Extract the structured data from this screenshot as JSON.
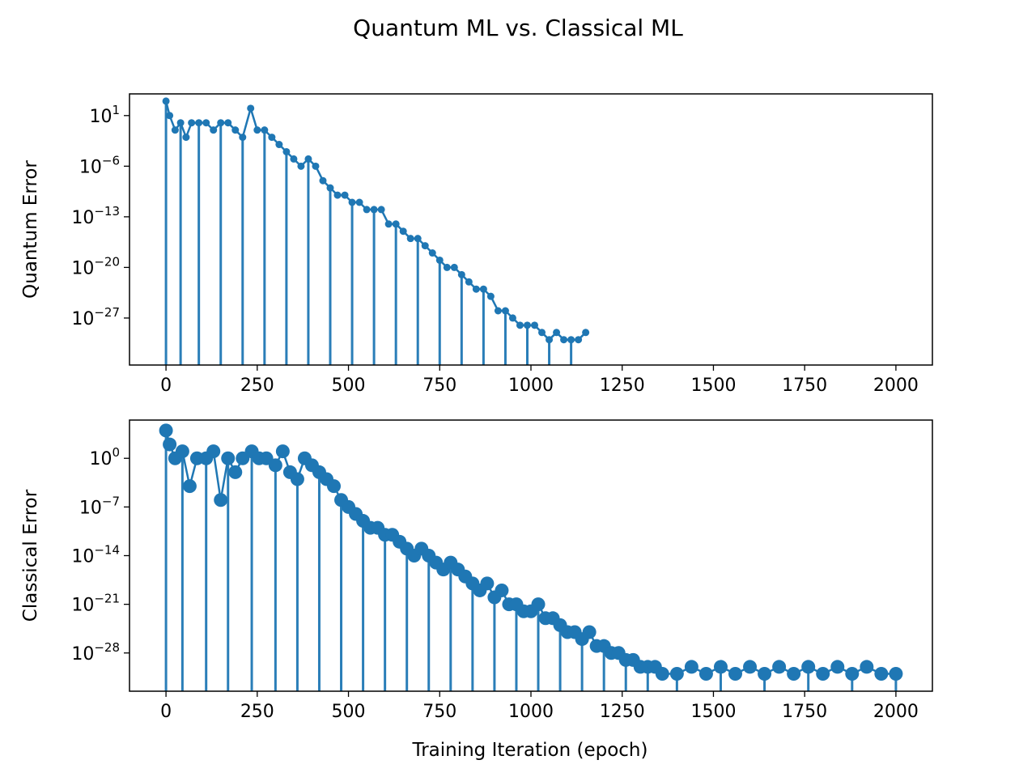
{
  "chart_data": {
    "type": "scatter",
    "suptitle": "Quantum ML vs. Classical ML",
    "xlabel": "Training Iteration (epoch)",
    "color": "#1f77b4",
    "panels": [
      {
        "name": "quantum",
        "ylabel": "Quantum Error",
        "yscale": "log",
        "xlim": [
          -100,
          2100
        ],
        "ylim_log10": [
          -33.5,
          4
        ],
        "xticks": [
          0,
          250,
          500,
          750,
          1000,
          1250,
          1500,
          1750,
          2000
        ],
        "xtick_labels": [
          "0",
          "250",
          "500",
          "750",
          "1000",
          "1250",
          "1500",
          "1750",
          "2000"
        ],
        "yticks_log10": [
          1,
          -6,
          -13,
          -20,
          -27
        ],
        "ytick_base": "10",
        "ytick_exponents": [
          "1",
          "−6",
          "−13",
          "−20",
          "−27"
        ],
        "marker": "small-dot",
        "series": [
          {
            "name": "Quantum Error",
            "points_log10": [
              [
                0,
                3
              ],
              [
                10,
                1
              ],
              [
                25,
                -1
              ],
              [
                40,
                0
              ],
              [
                55,
                -2
              ],
              [
                70,
                0
              ],
              [
                90,
                0
              ],
              [
                110,
                0
              ],
              [
                130,
                -1
              ],
              [
                150,
                0
              ],
              [
                170,
                0
              ],
              [
                190,
                -1
              ],
              [
                210,
                -2
              ],
              [
                232,
                2
              ],
              [
                250,
                -1
              ],
              [
                270,
                -1
              ],
              [
                290,
                -2
              ],
              [
                310,
                -3
              ],
              [
                330,
                -4
              ],
              [
                350,
                -5
              ],
              [
                370,
                -6
              ],
              [
                390,
                -5
              ],
              [
                410,
                -6
              ],
              [
                430,
                -8
              ],
              [
                450,
                -9
              ],
              [
                470,
                -10
              ],
              [
                490,
                -10
              ],
              [
                510,
                -11
              ],
              [
                530,
                -11
              ],
              [
                550,
                -12
              ],
              [
                570,
                -12
              ],
              [
                590,
                -12
              ],
              [
                610,
                -14
              ],
              [
                630,
                -14
              ],
              [
                650,
                -15
              ],
              [
                670,
                -16
              ],
              [
                690,
                -16
              ],
              [
                710,
                -17
              ],
              [
                730,
                -18
              ],
              [
                750,
                -19
              ],
              [
                770,
                -20
              ],
              [
                790,
                -20
              ],
              [
                810,
                -21
              ],
              [
                830,
                -22
              ],
              [
                850,
                -23
              ],
              [
                870,
                -23
              ],
              [
                890,
                -24
              ],
              [
                910,
                -26
              ],
              [
                930,
                -26
              ],
              [
                950,
                -27
              ],
              [
                970,
                -28
              ],
              [
                990,
                -28
              ],
              [
                1010,
                -28
              ],
              [
                1030,
                -29
              ],
              [
                1050,
                -30
              ],
              [
                1070,
                -29
              ],
              [
                1090,
                -30
              ],
              [
                1110,
                -30
              ],
              [
                1130,
                -30
              ],
              [
                1150,
                -29
              ]
            ]
          }
        ]
      },
      {
        "name": "classical",
        "ylabel": "Classical Error",
        "yscale": "log",
        "xlim": [
          -100,
          2100
        ],
        "ylim_log10": [
          -33.5,
          5.5
        ],
        "xticks": [
          0,
          250,
          500,
          750,
          1000,
          1250,
          1500,
          1750,
          2000
        ],
        "xtick_labels": [
          "0",
          "250",
          "500",
          "750",
          "1000",
          "1250",
          "1500",
          "1750",
          "2000"
        ],
        "yticks_log10": [
          0,
          -7,
          -14,
          -21,
          -28
        ],
        "ytick_base": "10",
        "ytick_exponents": [
          "0",
          "−7",
          "−14",
          "−21",
          "−28"
        ],
        "marker": "large-dot",
        "series": [
          {
            "name": "Classical Error",
            "points_log10": [
              [
                0,
                4
              ],
              [
                10,
                2
              ],
              [
                25,
                0
              ],
              [
                45,
                1
              ],
              [
                65,
                -4
              ],
              [
                85,
                0
              ],
              [
                110,
                0
              ],
              [
                130,
                1
              ],
              [
                150,
                -6
              ],
              [
                170,
                0
              ],
              [
                190,
                -2
              ],
              [
                210,
                0
              ],
              [
                235,
                1
              ],
              [
                255,
                0
              ],
              [
                275,
                0
              ],
              [
                300,
                -1
              ],
              [
                320,
                1
              ],
              [
                340,
                -2
              ],
              [
                360,
                -3
              ],
              [
                380,
                0
              ],
              [
                400,
                -1
              ],
              [
                420,
                -2
              ],
              [
                440,
                -3
              ],
              [
                460,
                -4
              ],
              [
                480,
                -6
              ],
              [
                500,
                -7
              ],
              [
                520,
                -8
              ],
              [
                540,
                -9
              ],
              [
                560,
                -10
              ],
              [
                580,
                -10
              ],
              [
                600,
                -11
              ],
              [
                620,
                -11
              ],
              [
                640,
                -12
              ],
              [
                660,
                -13
              ],
              [
                680,
                -14
              ],
              [
                700,
                -13
              ],
              [
                720,
                -14
              ],
              [
                740,
                -15
              ],
              [
                760,
                -16
              ],
              [
                780,
                -15
              ],
              [
                800,
                -16
              ],
              [
                820,
                -17
              ],
              [
                840,
                -18
              ],
              [
                860,
                -19
              ],
              [
                880,
                -18
              ],
              [
                900,
                -20
              ],
              [
                920,
                -19
              ],
              [
                940,
                -21
              ],
              [
                960,
                -21
              ],
              [
                980,
                -22
              ],
              [
                1000,
                -22
              ],
              [
                1020,
                -21
              ],
              [
                1040,
                -23
              ],
              [
                1060,
                -23
              ],
              [
                1080,
                -24
              ],
              [
                1100,
                -25
              ],
              [
                1120,
                -25
              ],
              [
                1140,
                -26
              ],
              [
                1160,
                -25
              ],
              [
                1180,
                -27
              ],
              [
                1200,
                -27
              ],
              [
                1220,
                -28
              ],
              [
                1240,
                -28
              ],
              [
                1260,
                -29
              ],
              [
                1280,
                -29
              ],
              [
                1300,
                -30
              ],
              [
                1320,
                -30
              ],
              [
                1340,
                -30
              ],
              [
                1360,
                -31
              ],
              [
                1400,
                -31
              ],
              [
                1440,
                -30
              ],
              [
                1480,
                -31
              ],
              [
                1520,
                -30
              ],
              [
                1560,
                -31
              ],
              [
                1600,
                -30
              ],
              [
                1640,
                -31
              ],
              [
                1680,
                -30
              ],
              [
                1720,
                -31
              ],
              [
                1760,
                -30
              ],
              [
                1800,
                -31
              ],
              [
                1840,
                -30
              ],
              [
                1880,
                -31
              ],
              [
                1920,
                -30
              ],
              [
                1960,
                -31
              ],
              [
                2000,
                -31
              ]
            ]
          }
        ]
      }
    ]
  }
}
